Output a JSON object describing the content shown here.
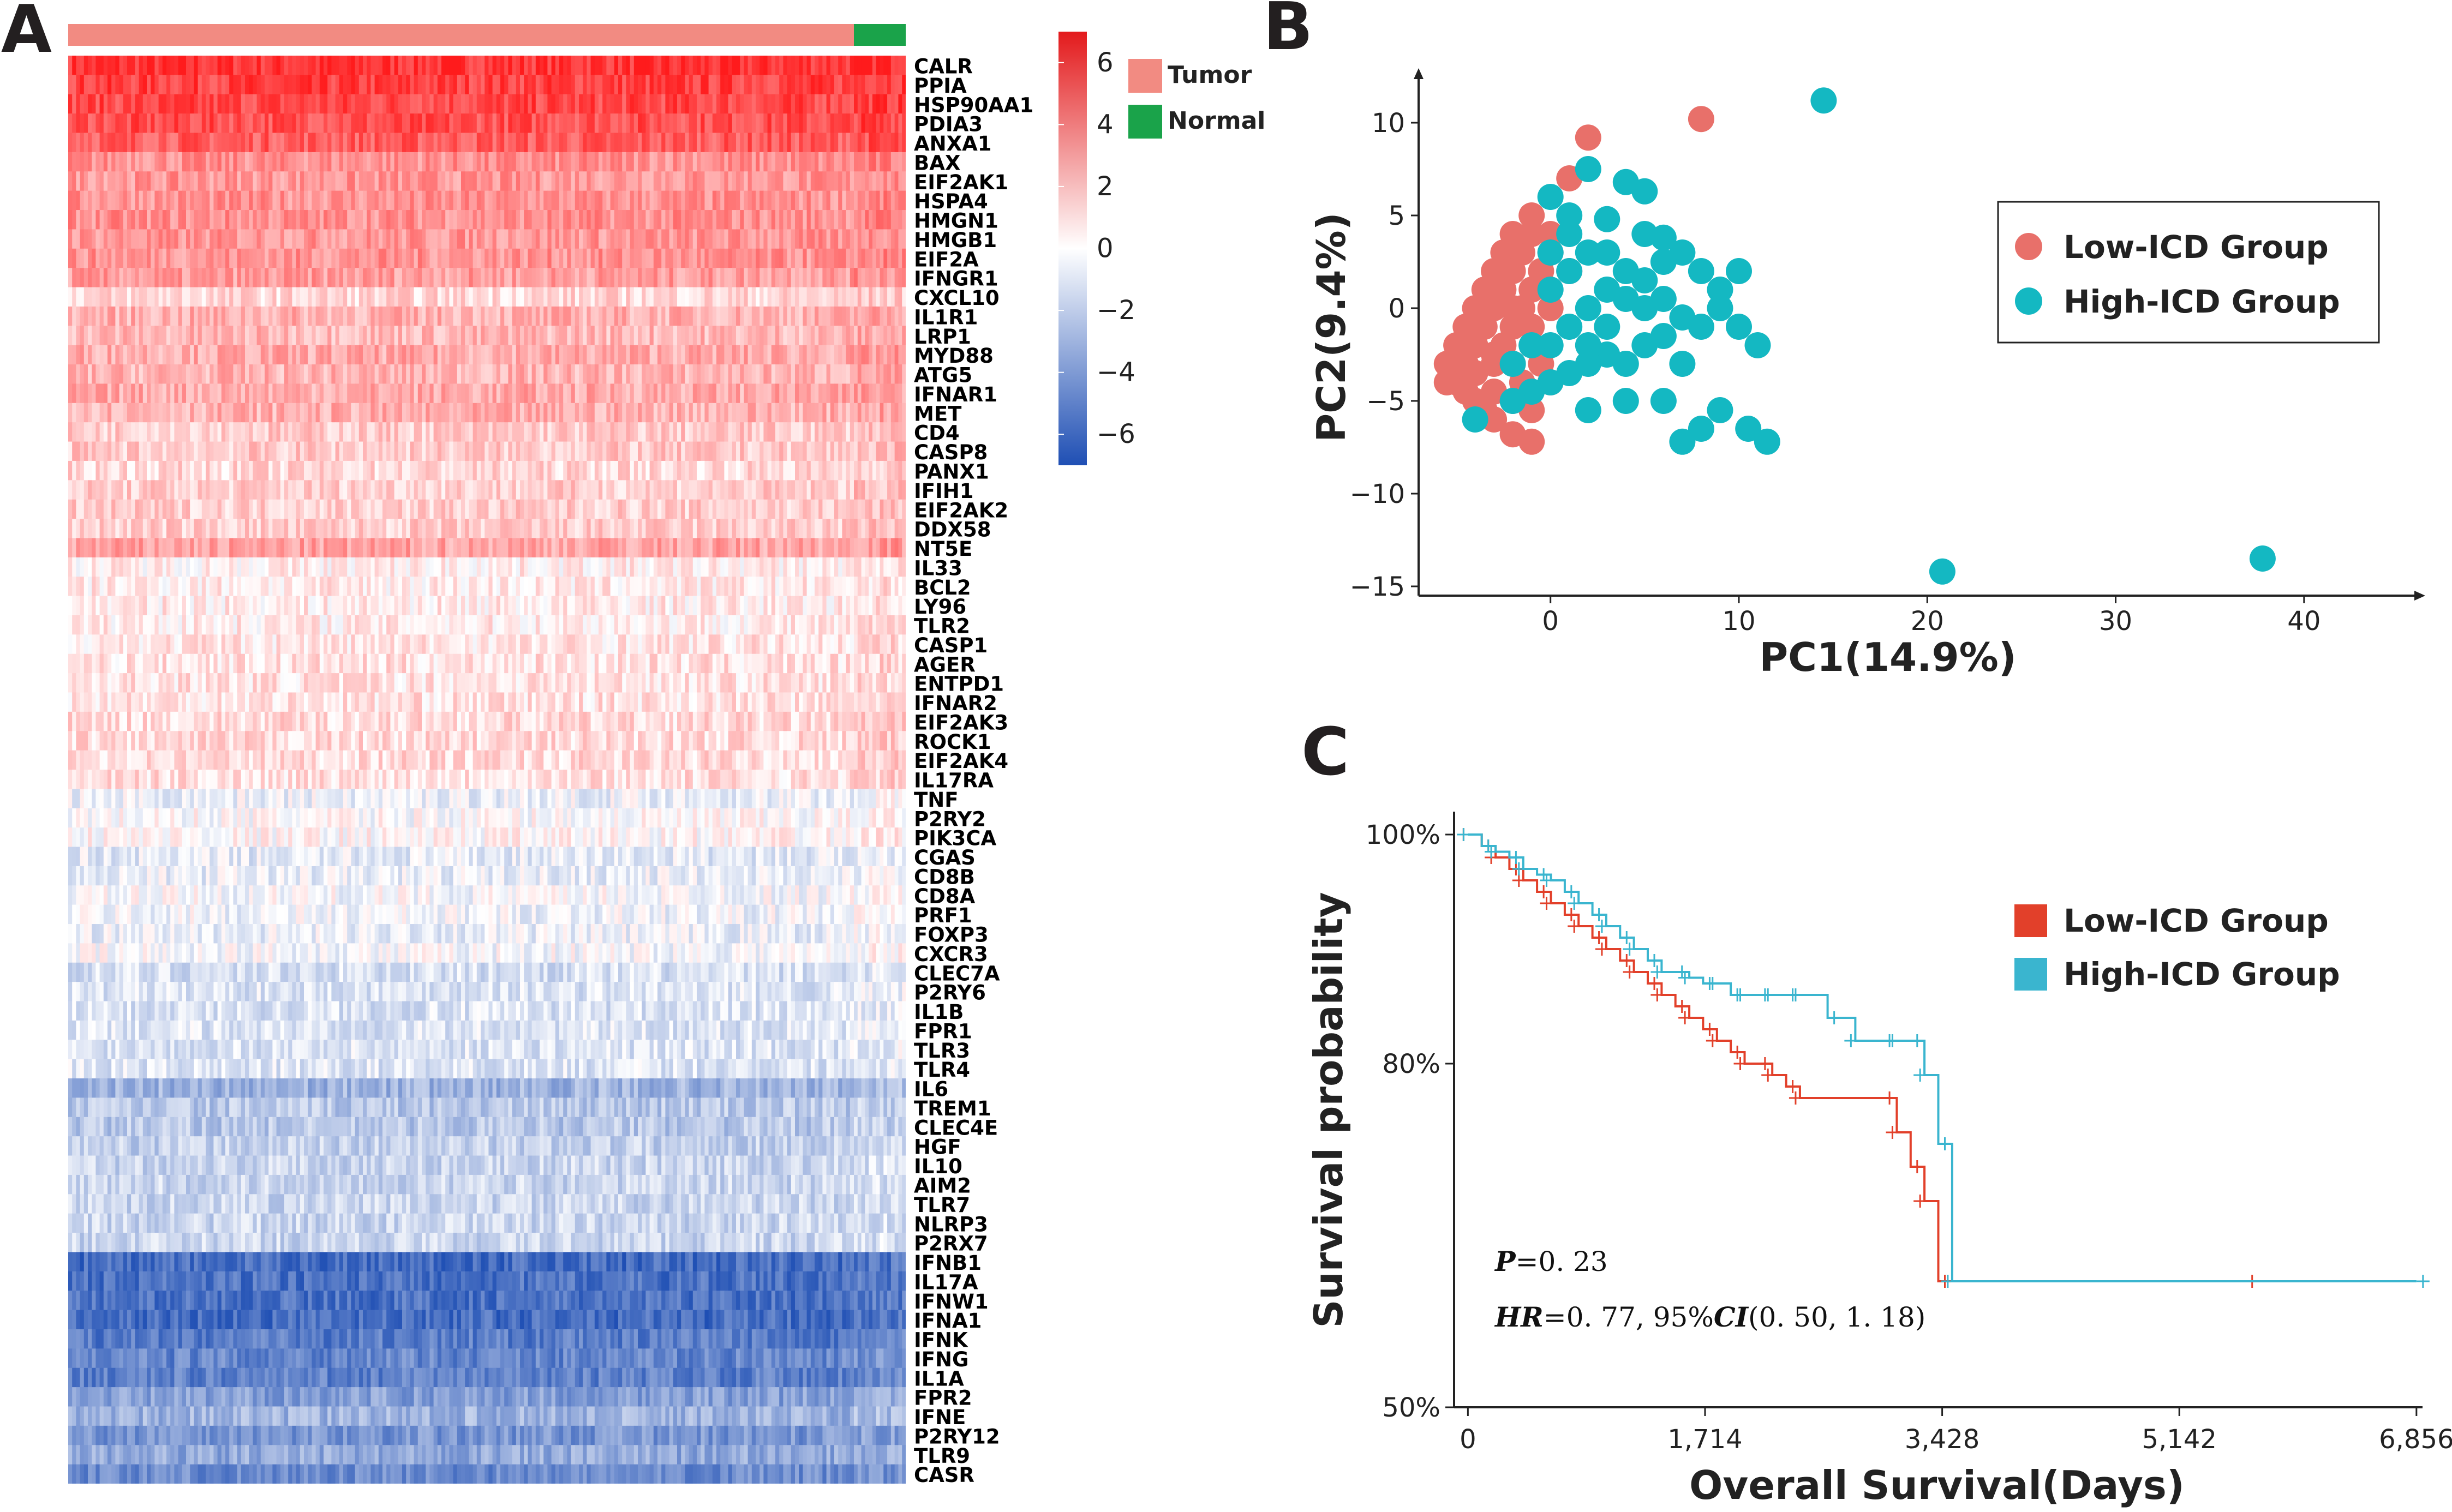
{
  "panels": {
    "a": "A",
    "b": "B",
    "c": "C"
  },
  "chart_data": [
    {
      "type": "heatmap",
      "panel": "A",
      "annotation_legend": [
        {
          "label": "Tumor",
          "color": "#f28b82"
        },
        {
          "label": "Normal",
          "color": "#1aa34a"
        }
      ],
      "colorbar": {
        "ticks": [
          6,
          4,
          2,
          0,
          -2,
          -4,
          -6
        ],
        "range": [
          -7,
          7
        ],
        "high_color": "#e31a1c",
        "mid_color": "#ffffff",
        "low_color": "#1f4fb4"
      },
      "sample_groups": [
        {
          "name": "Tumor",
          "columns": 200
        },
        {
          "name": "Normal",
          "columns": 14
        }
      ],
      "genes": [
        "CALR",
        "PPIA",
        "HSP90AA1",
        "PDIA3",
        "ANXA1",
        "BAX",
        "EIF2AK1",
        "HSPA4",
        "HMGN1",
        "HMGB1",
        "EIF2A",
        "IFNGR1",
        "CXCL10",
        "IL1R1",
        "LRP1",
        "MYD88",
        "ATG5",
        "IFNAR1",
        "MET",
        "CD4",
        "CASP8",
        "PANX1",
        "IFIH1",
        "EIF2AK2",
        "DDX58",
        "NT5E",
        "IL33",
        "BCL2",
        "LY96",
        "TLR2",
        "CASP1",
        "AGER",
        "ENTPD1",
        "IFNAR2",
        "EIF2AK3",
        "ROCK1",
        "EIF2AK4",
        "IL17RA",
        "TNF",
        "P2RY2",
        "PIK3CA",
        "CGAS",
        "CD8B",
        "CD8A",
        "PRF1",
        "FOXP3",
        "CXCR3",
        "CLEC7A",
        "P2RY6",
        "IL1B",
        "FPR1",
        "TLR3",
        "TLR4",
        "IL6",
        "TREM1",
        "CLEC4E",
        "HGF",
        "IL10",
        "AIM2",
        "TLR7",
        "NLRP3",
        "P2RX7",
        "IFNB1",
        "IL17A",
        "IFNW1",
        "IFNA1",
        "IFNK",
        "IFNG",
        "IL1A",
        "FPR2",
        "IFNE",
        "P2RY12",
        "TLR9",
        "CASR"
      ],
      "mean_expression": [
        6.2,
        5.8,
        5.6,
        5.4,
        5.0,
        3.4,
        3.2,
        3.3,
        3.4,
        3.2,
        3.3,
        3.0,
        1.2,
        2.4,
        2.2,
        2.6,
        2.3,
        2.6,
        2.4,
        1.6,
        1.6,
        1.2,
        1.5,
        1.5,
        1.5,
        2.8,
        0.5,
        0.6,
        0.6,
        0.6,
        0.8,
        0.9,
        0.9,
        0.9,
        1.1,
        1.1,
        1.1,
        1.0,
        -0.5,
        0.0,
        0.2,
        -0.8,
        -0.6,
        -0.2,
        -0.4,
        -0.6,
        -0.2,
        -1.2,
        -1.0,
        -1.1,
        -1.0,
        -1.0,
        -1.0,
        -3.0,
        -2.2,
        -2.2,
        -1.8,
        -1.6,
        -1.6,
        -1.6,
        -1.6,
        -1.6,
        -5.8,
        -5.6,
        -5.6,
        -5.8,
        -5.2,
        -4.8,
        -5.0,
        -3.8,
        -3.0,
        -4.2,
        -3.4,
        -4.6
      ]
    },
    {
      "type": "scatter",
      "panel": "B",
      "xlabel": "PC1(14.9%)",
      "ylabel": "PC2(9.4%)",
      "xlim": [
        -7,
        46
      ],
      "ylim": [
        -15.5,
        12.5
      ],
      "xticks": [
        0,
        10,
        20,
        30,
        40
      ],
      "yticks": [
        10,
        5,
        0,
        -5,
        -10,
        -15
      ],
      "series": [
        {
          "name": "Low-ICD Group",
          "color": "#e8706a",
          "points": [
            [
              8,
              10.2
            ],
            [
              2,
              9.2
            ],
            [
              1,
              7
            ],
            [
              -1,
              5
            ],
            [
              -2,
              4
            ],
            [
              -2.5,
              3
            ],
            [
              -3,
              2
            ],
            [
              -3.5,
              1
            ],
            [
              -4,
              0
            ],
            [
              -4.5,
              -1
            ],
            [
              -5,
              -2
            ],
            [
              -5.5,
              -3
            ],
            [
              -5,
              -4
            ],
            [
              -4.5,
              -4.5
            ],
            [
              -4,
              -5
            ],
            [
              -3.5,
              -5.5
            ],
            [
              -3,
              -6
            ],
            [
              -2,
              -6.8
            ],
            [
              -1,
              -7.2
            ],
            [
              -3,
              -3
            ],
            [
              -2.5,
              -2
            ],
            [
              -2,
              -1
            ],
            [
              -1.5,
              0
            ],
            [
              -1,
              1
            ],
            [
              -0.5,
              2
            ],
            [
              0,
              3
            ],
            [
              -4,
              -2
            ],
            [
              -3.5,
              -1
            ],
            [
              -3,
              0
            ],
            [
              -2.5,
              1
            ],
            [
              -2,
              2
            ],
            [
              -1.5,
              3
            ],
            [
              -1,
              4
            ],
            [
              -4,
              -3.5
            ],
            [
              -3,
              -4.5
            ],
            [
              -2,
              -5
            ],
            [
              -1,
              -5.5
            ],
            [
              0,
              -4
            ],
            [
              -0.5,
              -3
            ],
            [
              -1,
              -2
            ],
            [
              -2,
              -3
            ],
            [
              -3,
              -2.5
            ],
            [
              -4.5,
              -3
            ],
            [
              -5.5,
              -4
            ],
            [
              -2,
              0
            ],
            [
              -1,
              -1
            ],
            [
              0,
              0
            ],
            [
              1,
              2
            ],
            [
              0,
              4
            ],
            [
              -1.5,
              -4
            ]
          ]
        },
        {
          "name": "High-ICD Group",
          "color": "#14b8c2",
          "points": [
            [
              14.5,
              11.2
            ],
            [
              20.8,
              -14.2
            ],
            [
              37.8,
              -13.5
            ],
            [
              2,
              7.5
            ],
            [
              4,
              6.8
            ],
            [
              5,
              6.3
            ],
            [
              0,
              6
            ],
            [
              1,
              5
            ],
            [
              3,
              4.8
            ],
            [
              5,
              4
            ],
            [
              6,
              3.8
            ],
            [
              7,
              3
            ],
            [
              6,
              2.5
            ],
            [
              8,
              2
            ],
            [
              9,
              1
            ],
            [
              10,
              2
            ],
            [
              9,
              0
            ],
            [
              10,
              -1
            ],
            [
              8,
              -1
            ],
            [
              7,
              -0.5
            ],
            [
              6,
              -1.5
            ],
            [
              5,
              -2
            ],
            [
              4,
              -3
            ],
            [
              3,
              -2.5
            ],
            [
              2,
              -3
            ],
            [
              1,
              -3.5
            ],
            [
              0,
              -4
            ],
            [
              -1,
              -4.5
            ],
            [
              -2,
              -5
            ],
            [
              -4,
              -6
            ],
            [
              2,
              -5.5
            ],
            [
              4,
              -5
            ],
            [
              6,
              -5
            ],
            [
              7,
              -3
            ],
            [
              9,
              -5.5
            ],
            [
              10.5,
              -6.5
            ],
            [
              11.5,
              -7.2
            ],
            [
              8,
              -6.5
            ],
            [
              7,
              -7.2
            ],
            [
              11,
              -2
            ],
            [
              2,
              3
            ],
            [
              1,
              2
            ],
            [
              0,
              1
            ],
            [
              3,
              1
            ],
            [
              4,
              2
            ],
            [
              5,
              0
            ],
            [
              2,
              0
            ],
            [
              1,
              -1
            ],
            [
              0,
              -2
            ],
            [
              3,
              -1
            ],
            [
              4,
              0.5
            ],
            [
              5,
              1.5
            ],
            [
              6,
              0.5
            ],
            [
              -1,
              -2
            ],
            [
              2,
              -2
            ],
            [
              0,
              3
            ],
            [
              1,
              4
            ],
            [
              3,
              3
            ],
            [
              -2,
              -3
            ]
          ]
        }
      ]
    },
    {
      "type": "line",
      "panel": "C",
      "xlabel": "Overall Survival(Days)",
      "ylabel": "Survival probability",
      "xlim": [
        -100,
        6900
      ],
      "ylim": [
        0.5,
        1.02
      ],
      "xticks": [
        "0",
        "1,714",
        "3,428",
        "5,142",
        "6,856"
      ],
      "xtick_values": [
        0,
        1714,
        3428,
        5142,
        6856
      ],
      "yticks": [
        "100%",
        "80%",
        "50%"
      ],
      "ytick_values": [
        1.0,
        0.8,
        0.5
      ],
      "annotations": {
        "p_label": "P",
        "p_text": "=0. 23",
        "hr_label": "HR",
        "hr_text": "=0. 77, 95%",
        "ci_label": "CI",
        "ci_text": "(0. 50, 1. 18)"
      },
      "series": [
        {
          "name": "Low-ICD Group",
          "color": "#e2402a",
          "x": [
            0,
            100,
            200,
            300,
            400,
            500,
            600,
            700,
            800,
            900,
            1000,
            1100,
            1200,
            1300,
            1400,
            1500,
            1600,
            1700,
            1800,
            1900,
            2000,
            2100,
            2200,
            2300,
            2400,
            3000,
            3100,
            3200,
            3300,
            3400,
            5700
          ],
          "y": [
            1.0,
            0.99,
            0.98,
            0.97,
            0.96,
            0.95,
            0.94,
            0.93,
            0.92,
            0.91,
            0.9,
            0.89,
            0.88,
            0.87,
            0.86,
            0.85,
            0.84,
            0.83,
            0.82,
            0.81,
            0.8,
            0.8,
            0.79,
            0.78,
            0.77,
            0.77,
            0.74,
            0.71,
            0.68,
            0.61,
            0.61
          ]
        },
        {
          "name": "High-ICD Group",
          "color": "#3ab5cf",
          "x": [
            0,
            100,
            200,
            300,
            400,
            500,
            600,
            700,
            800,
            900,
            1000,
            1100,
            1200,
            1300,
            1400,
            1500,
            1600,
            1700,
            1800,
            1900,
            2000,
            2100,
            2200,
            2300,
            2400,
            2600,
            2800,
            3000,
            3100,
            3200,
            3300,
            3400,
            3500,
            6856
          ],
          "y": [
            1.0,
            0.99,
            0.985,
            0.98,
            0.97,
            0.965,
            0.96,
            0.95,
            0.94,
            0.93,
            0.92,
            0.91,
            0.9,
            0.89,
            0.88,
            0.88,
            0.875,
            0.87,
            0.87,
            0.86,
            0.86,
            0.86,
            0.86,
            0.86,
            0.86,
            0.84,
            0.82,
            0.82,
            0.82,
            0.82,
            0.79,
            0.73,
            0.61,
            0.61
          ]
        }
      ]
    }
  ]
}
